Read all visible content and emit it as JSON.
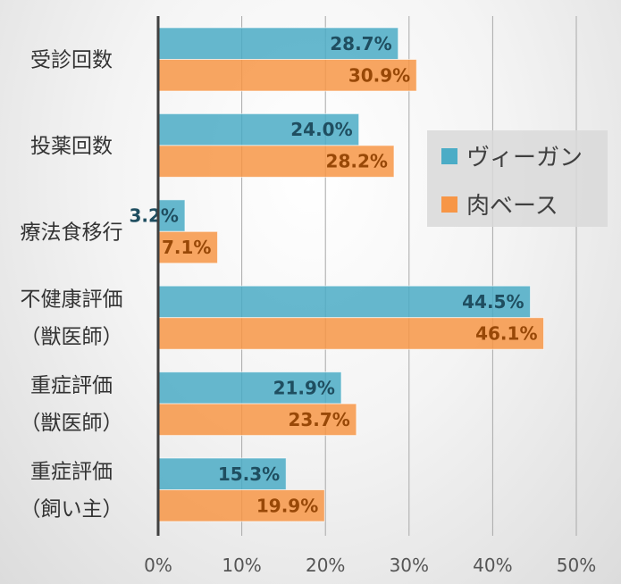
{
  "chart_data": {
    "type": "bar",
    "orientation": "horizontal",
    "categories": [
      [
        "受診回数"
      ],
      [
        "投薬回数"
      ],
      [
        "療法食移行"
      ],
      [
        "不健康評価",
        "（獣医師）"
      ],
      [
        "重症評価",
        "（獣医師）"
      ],
      [
        "重症評価",
        "（飼い主）"
      ]
    ],
    "series": [
      {
        "name": "ヴィーガン",
        "color": "#4BACC6",
        "label_color": "#1F4E60",
        "values": [
          28.7,
          24.0,
          3.2,
          44.5,
          21.9,
          15.3
        ],
        "labels": [
          "28.7%",
          "24.0%",
          "3.2%",
          "44.5%",
          "21.9%",
          "15.3%"
        ]
      },
      {
        "name": "肉ベース",
        "color": "#F79646",
        "label_color": "#984807",
        "values": [
          30.9,
          28.2,
          7.1,
          46.1,
          23.7,
          19.9
        ],
        "labels": [
          "30.9%",
          "28.2%",
          "7.1%",
          "46.1%",
          "23.7%",
          "19.9%"
        ]
      }
    ],
    "xlim": [
      0,
      50
    ],
    "xticks": [
      0,
      10,
      20,
      30,
      40,
      50
    ],
    "xtick_labels": [
      "0%",
      "10%",
      "20%",
      "30%",
      "40%",
      "50%"
    ],
    "grid": "vertical",
    "legend_position": "right"
  }
}
